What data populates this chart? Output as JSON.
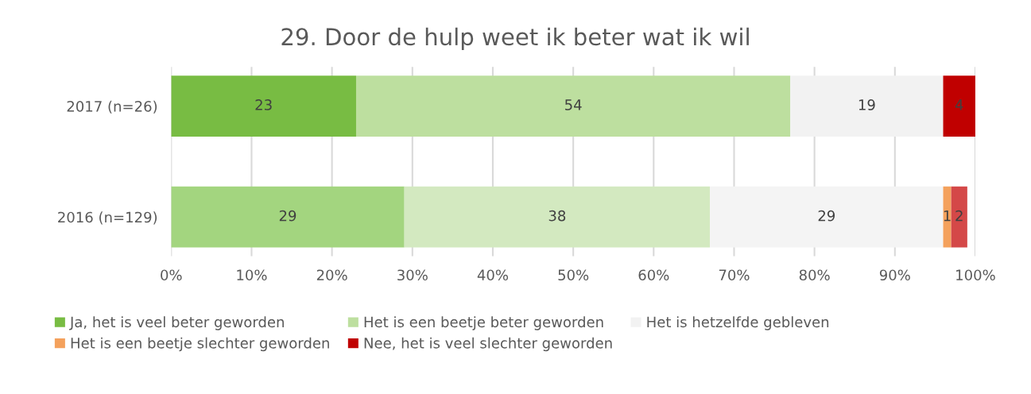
{
  "chart_data": {
    "type": "bar",
    "orientation": "horizontal",
    "stacked": true,
    "title": "29. Door de hulp weet ik beter wat ik wil",
    "categories": [
      "2017 (n=26)",
      "2016 (n=129)"
    ],
    "series": [
      {
        "name": "Ja, het is veel beter geworden",
        "color": "#78bc43",
        "colors": [
          "#78bc43",
          "#a3d57f"
        ],
        "values": [
          23,
          29
        ],
        "value_labels": [
          "23",
          "29"
        ]
      },
      {
        "name": "Het is een beetje beter geworden",
        "color": "#bddf9f",
        "colors": [
          "#bddf9f",
          "#d3e9c0"
        ],
        "values": [
          54,
          38
        ],
        "value_labels": [
          "54",
          "38"
        ]
      },
      {
        "name": "Het is hetzelfde gebleven",
        "color": "#f2f2f2",
        "colors": [
          "#f2f2f2",
          "#f4f4f4"
        ],
        "values": [
          19,
          29
        ],
        "value_labels": [
          "19",
          "29"
        ]
      },
      {
        "name": "Het is een beetje slechter geworden",
        "color": "#f4a15c",
        "colors": [
          "#f4a15c",
          "#f4a15c"
        ],
        "values": [
          0,
          1
        ],
        "value_labels": [
          null,
          "1"
        ]
      },
      {
        "name": "Nee, het is veel slechter geworden",
        "color": "#c00000",
        "colors": [
          "#c00000",
          "#d44848"
        ],
        "values": [
          4,
          2
        ],
        "value_labels": [
          "4",
          "2"
        ]
      }
    ],
    "xlim": [
      0,
      100
    ],
    "xticks": [
      {
        "value": 0,
        "label": "0%"
      },
      {
        "value": 10,
        "label": "10%"
      },
      {
        "value": 20,
        "label": "20%"
      },
      {
        "value": 30,
        "label": "30%"
      },
      {
        "value": 40,
        "label": "40%"
      },
      {
        "value": 50,
        "label": "50%"
      },
      {
        "value": 60,
        "label": "60%"
      },
      {
        "value": 70,
        "label": "70%"
      },
      {
        "value": 80,
        "label": "80%"
      },
      {
        "value": 90,
        "label": "90%"
      },
      {
        "value": 100,
        "label": "100%"
      }
    ],
    "grid": "x",
    "legend": "bottom"
  }
}
